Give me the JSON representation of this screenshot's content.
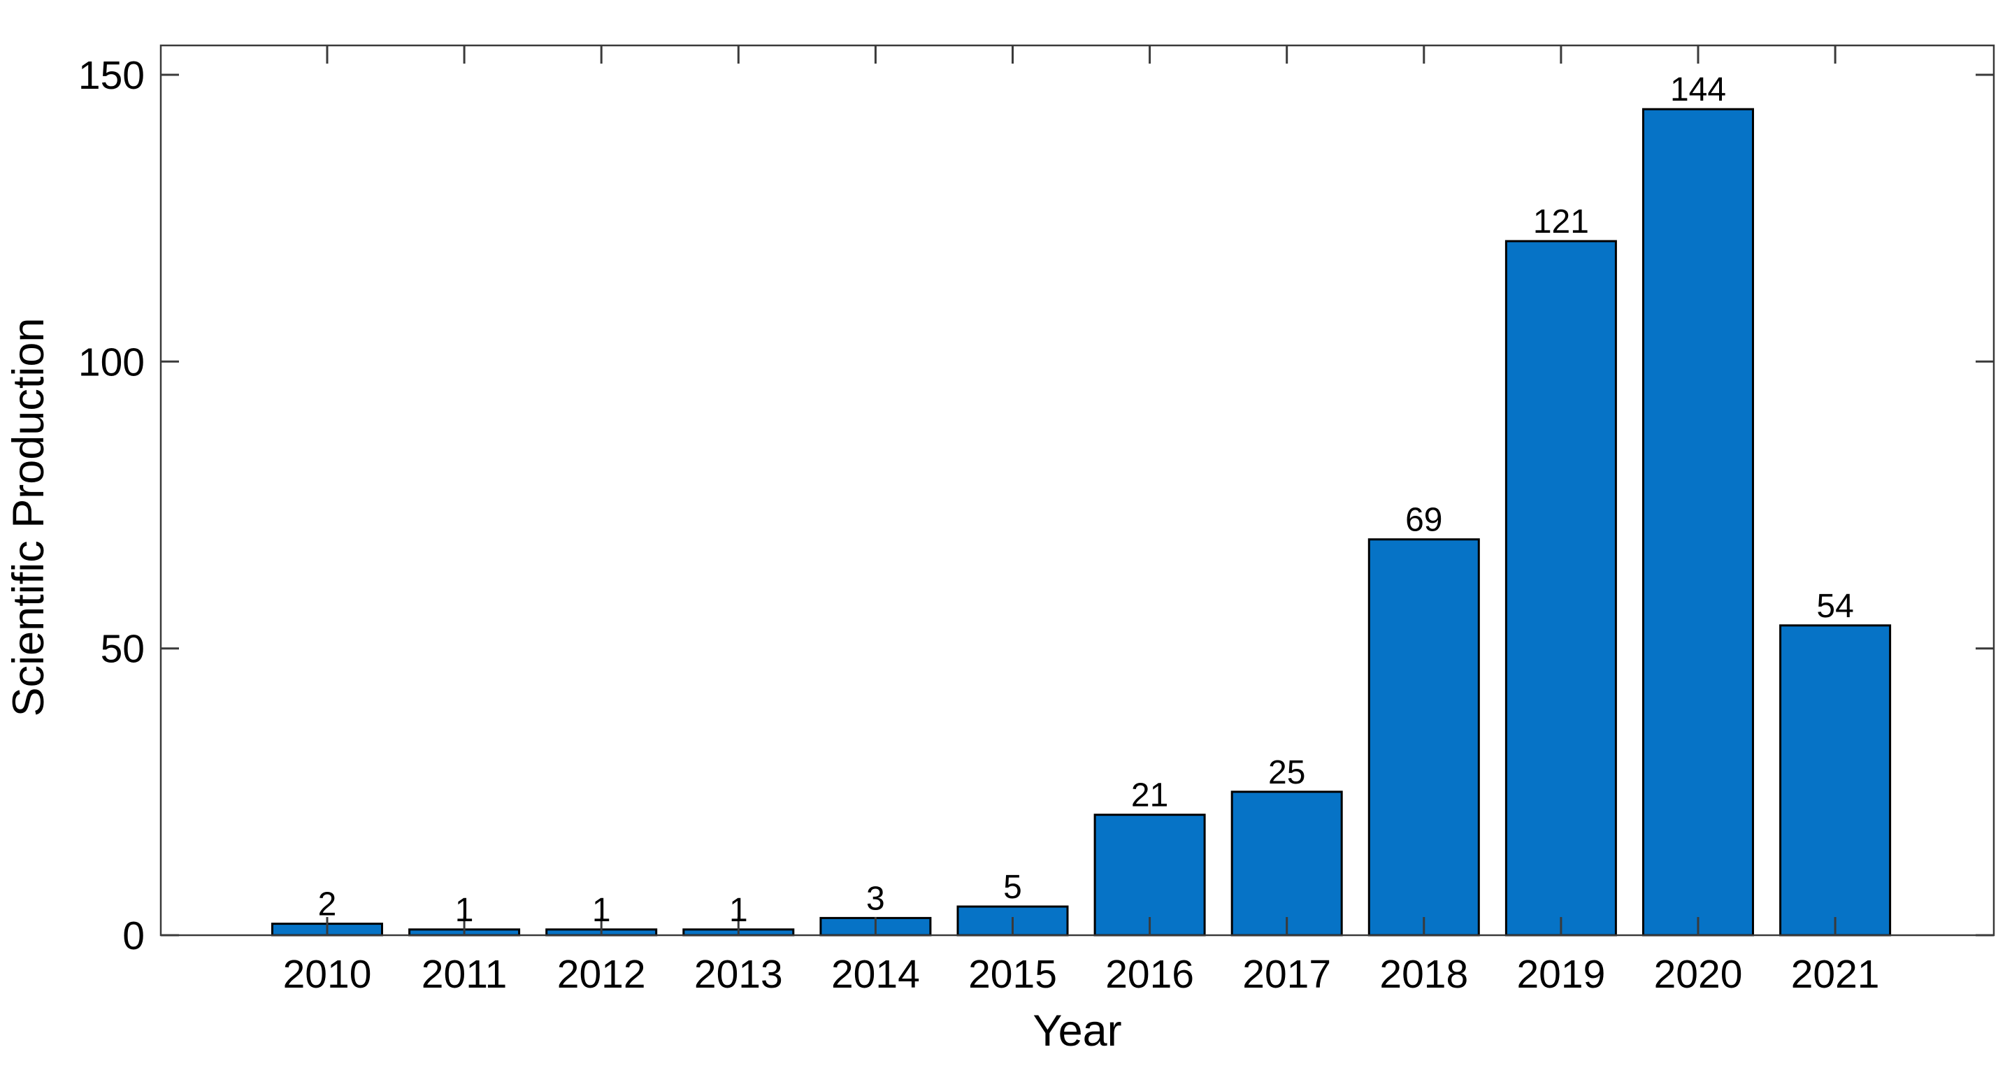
{
  "chart_data": {
    "type": "bar",
    "title": "",
    "xlabel": "Year",
    "ylabel": "Scientific Production",
    "categories": [
      "2010",
      "2011",
      "2012",
      "2013",
      "2014",
      "2015",
      "2016",
      "2017",
      "2018",
      "2019",
      "2020",
      "2021"
    ],
    "values": [
      2,
      1,
      1,
      1,
      3,
      5,
      21,
      25,
      69,
      121,
      144,
      54
    ],
    "bar_labels": [
      "2",
      "1",
      "1",
      "1",
      "3",
      "5",
      "21",
      "25",
      "69",
      "121",
      "144",
      "54"
    ],
    "ylim": [
      0,
      155
    ],
    "yticks": [
      0,
      50,
      100,
      150
    ],
    "ytick_labels": [
      "0",
      "50",
      "100",
      "150"
    ],
    "grid": false,
    "legend": "none",
    "bar_width_fraction": 0.8,
    "tick_direction": "in",
    "box": true,
    "colors": {
      "bar_fill": "#0673C6",
      "bar_edge": "#000000",
      "axis_line": "#3a3a3a",
      "text": "#000000",
      "background": "#ffffff"
    }
  }
}
